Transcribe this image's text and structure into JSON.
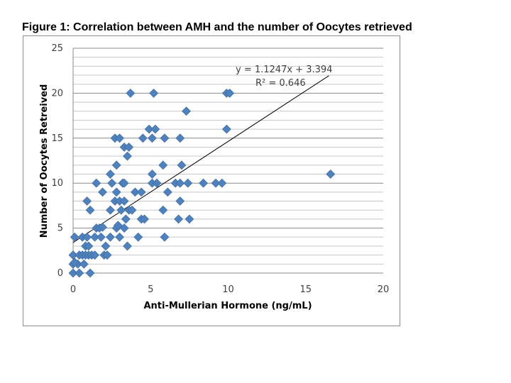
{
  "figure": {
    "title": "Figure 1: Correlation between AMH and the number of Oocytes retrieved"
  },
  "chart_data": {
    "type": "scatter",
    "xlabel": "Anti-Mullerian Hormone (ng/mL)",
    "ylabel": "Number of Oocytes Retreived",
    "xlim": [
      0,
      20
    ],
    "ylim": [
      0,
      25
    ],
    "x_ticks": [
      "0",
      "5",
      "10",
      "15",
      "20"
    ],
    "y_ticks": [
      "0",
      "5",
      "10",
      "15",
      "20",
      "25"
    ],
    "grid": true,
    "marker_color": "#4f81bd",
    "trendline": {
      "equation": "y = 1.1247x + 3.394",
      "r2": "R² = 0.646",
      "slope": 1.1247,
      "intercept": 3.394,
      "x_range": [
        0,
        16.5
      ]
    },
    "series": [
      {
        "points": [
          [
            0,
            0
          ],
          [
            0.4,
            0
          ],
          [
            1.1,
            0
          ],
          [
            0,
            1
          ],
          [
            0.3,
            1
          ],
          [
            0.7,
            1
          ],
          [
            0.1,
            1.2
          ],
          [
            0,
            2
          ],
          [
            0.4,
            2
          ],
          [
            0.6,
            2
          ],
          [
            0.8,
            2
          ],
          [
            1.0,
            2
          ],
          [
            1.2,
            2
          ],
          [
            1.4,
            2
          ],
          [
            2.0,
            2
          ],
          [
            2.2,
            2
          ],
          [
            0.8,
            3
          ],
          [
            1.0,
            3
          ],
          [
            2.1,
            3
          ],
          [
            3.5,
            3
          ],
          [
            0.1,
            4
          ],
          [
            0.6,
            4
          ],
          [
            0.9,
            4
          ],
          [
            1.4,
            4
          ],
          [
            1.8,
            4
          ],
          [
            2.4,
            4
          ],
          [
            3.0,
            4
          ],
          [
            4.2,
            4
          ],
          [
            5.9,
            4
          ],
          [
            1.5,
            5
          ],
          [
            1.7,
            5
          ],
          [
            2.8,
            5
          ],
          [
            3.3,
            5
          ],
          [
            1.9,
            5.1
          ],
          [
            2.9,
            5.3
          ],
          [
            3.4,
            6
          ],
          [
            4.4,
            6
          ],
          [
            4.6,
            6
          ],
          [
            6.8,
            6
          ],
          [
            7.5,
            6
          ],
          [
            1.1,
            7
          ],
          [
            2.4,
            7
          ],
          [
            3.1,
            7
          ],
          [
            3.6,
            7
          ],
          [
            3.8,
            7
          ],
          [
            5.8,
            7
          ],
          [
            0.9,
            8
          ],
          [
            2.7,
            8
          ],
          [
            3.0,
            8
          ],
          [
            3.3,
            8
          ],
          [
            6.9,
            8
          ],
          [
            1.9,
            9
          ],
          [
            2.8,
            9
          ],
          [
            4.0,
            9
          ],
          [
            4.4,
            9
          ],
          [
            6.1,
            9
          ],
          [
            1.5,
            10
          ],
          [
            2.5,
            10
          ],
          [
            3.2,
            10
          ],
          [
            3.3,
            10
          ],
          [
            5.1,
            10
          ],
          [
            5.4,
            10
          ],
          [
            6.6,
            10
          ],
          [
            6.9,
            10
          ],
          [
            7.4,
            10
          ],
          [
            8.4,
            10
          ],
          [
            9.2,
            10
          ],
          [
            9.6,
            10
          ],
          [
            2.4,
            11
          ],
          [
            5.1,
            11
          ],
          [
            16.6,
            11
          ],
          [
            2.8,
            12
          ],
          [
            5.8,
            12
          ],
          [
            7.0,
            12
          ],
          [
            3.5,
            13
          ],
          [
            3.3,
            14
          ],
          [
            3.6,
            14
          ],
          [
            2.7,
            15
          ],
          [
            3.0,
            15
          ],
          [
            4.5,
            15
          ],
          [
            5.1,
            15
          ],
          [
            5.9,
            15
          ],
          [
            6.9,
            15
          ],
          [
            4.9,
            16
          ],
          [
            5.3,
            16
          ],
          [
            9.9,
            16
          ],
          [
            7.3,
            18
          ],
          [
            3.7,
            20
          ],
          [
            5.2,
            20
          ],
          [
            9.9,
            20
          ],
          [
            10.1,
            20
          ]
        ]
      }
    ]
  }
}
